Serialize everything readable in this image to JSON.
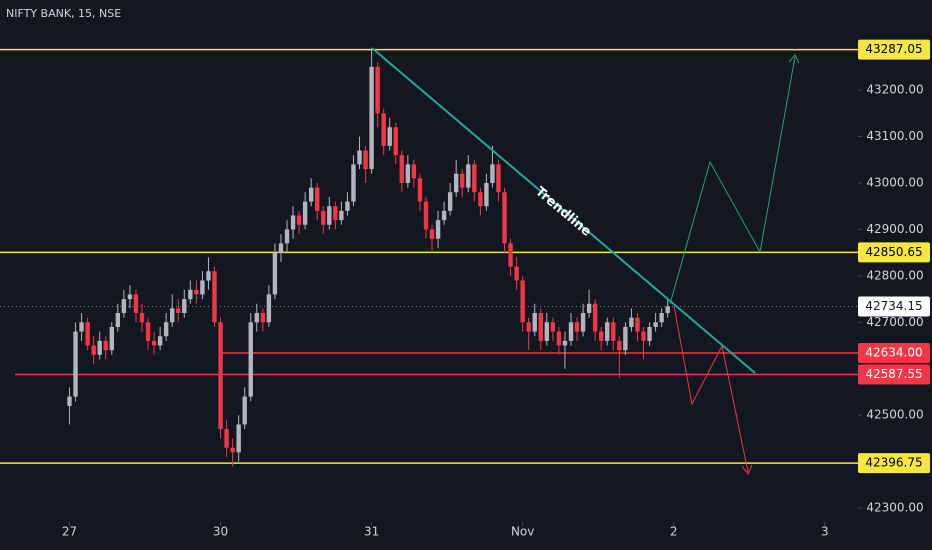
{
  "chart_data": {
    "type": "candlestick",
    "title": "NIFTY BANK, 15, NSE",
    "up_color": "#b2b5be",
    "down_color": "#f23645",
    "xlim": [
      -11.5,
      130.5
    ],
    "ylim": [
      42270,
      43394
    ],
    "xticks": [
      {
        "value": 0,
        "label": "27"
      },
      {
        "value": 25,
        "label": "30"
      },
      {
        "value": 50,
        "label": "31"
      },
      {
        "value": 75,
        "label": "Nov"
      },
      {
        "value": 100,
        "label": "2"
      },
      {
        "value": 125,
        "label": "3"
      }
    ],
    "yticks": [
      {
        "value": 43200,
        "label": "43200.00"
      },
      {
        "value": 43100,
        "label": "43100.00"
      },
      {
        "value": 43000,
        "label": "43000.00"
      },
      {
        "value": 42900,
        "label": "42900.00"
      },
      {
        "value": 42800,
        "label": "42800.00"
      },
      {
        "value": 42700,
        "label": "42700.00"
      },
      {
        "value": 42500,
        "label": "42500.00"
      },
      {
        "value": 42300,
        "label": "42300.00"
      }
    ],
    "levels": [
      {
        "price": 43287.05,
        "color": "#f5e642",
        "text_color": "#000000"
      },
      {
        "price": 42850.65,
        "color": "#f5e642",
        "text_color": "#000000"
      },
      {
        "price": 42396.75,
        "color": "#f5e642",
        "text_color": "#000000"
      },
      {
        "price": 42634,
        "label": "42634.00",
        "color": "#f23645",
        "text_color": "#ffffff"
      },
      {
        "price": 42587.55,
        "color": "#f23645",
        "text_color": "#ffffff"
      }
    ],
    "last_price": 42734.15,
    "annotations": [
      "Trendline"
    ],
    "candles": [
      [
        42520,
        42560,
        42480,
        42540
      ],
      [
        42540,
        42700,
        42530,
        42680
      ],
      [
        42680,
        42720,
        42660,
        42700
      ],
      [
        42700,
        42710,
        42640,
        42650
      ],
      [
        42650,
        42670,
        42610,
        42630
      ],
      [
        42630,
        42680,
        42620,
        42660
      ],
      [
        42660,
        42670,
        42620,
        42640
      ],
      [
        42640,
        42700,
        42630,
        42690
      ],
      [
        42690,
        42740,
        42680,
        42720
      ],
      [
        42720,
        42770,
        42710,
        42750
      ],
      [
        42750,
        42780,
        42730,
        42760
      ],
      [
        42760,
        42770,
        42700,
        42720
      ],
      [
        42720,
        42740,
        42680,
        42700
      ],
      [
        42700,
        42710,
        42640,
        42660
      ],
      [
        42660,
        42680,
        42630,
        42650
      ],
      [
        42650,
        42690,
        42640,
        42670
      ],
      [
        42670,
        42720,
        42660,
        42700
      ],
      [
        42700,
        42760,
        42690,
        42730
      ],
      [
        42730,
        42750,
        42700,
        42720
      ],
      [
        42720,
        42770,
        42710,
        42750
      ],
      [
        42750,
        42790,
        42740,
        42770
      ],
      [
        42770,
        42790,
        42740,
        42760
      ],
      [
        42760,
        42810,
        42750,
        42790
      ],
      [
        42790,
        42840,
        42770,
        42810
      ],
      [
        42810,
        42820,
        42690,
        42700
      ],
      [
        42700,
        42710,
        42450,
        42470
      ],
      [
        42470,
        42490,
        42410,
        42430
      ],
      [
        42430,
        42450,
        42390,
        42420
      ],
      [
        42420,
        42500,
        42400,
        42480
      ],
      [
        42480,
        42560,
        42470,
        42540
      ],
      [
        42540,
        42720,
        42530,
        42700
      ],
      [
        42700,
        42740,
        42680,
        42720
      ],
      [
        42720,
        42730,
        42680,
        42700
      ],
      [
        42700,
        42780,
        42690,
        42760
      ],
      [
        42760,
        42870,
        42750,
        42850
      ],
      [
        42850,
        42890,
        42830,
        42870
      ],
      [
        42870,
        42920,
        42850,
        42900
      ],
      [
        42900,
        42950,
        42880,
        42930
      ],
      [
        42930,
        42940,
        42890,
        42910
      ],
      [
        42910,
        42980,
        42900,
        42960
      ],
      [
        42960,
        43010,
        42950,
        42990
      ],
      [
        42990,
        43000,
        42920,
        42940
      ],
      [
        42940,
        42950,
        42890,
        42910
      ],
      [
        42910,
        42970,
        42900,
        42950
      ],
      [
        42950,
        42960,
        42900,
        42920
      ],
      [
        42920,
        42960,
        42910,
        42940
      ],
      [
        42940,
        42980,
        42930,
        42960
      ],
      [
        42960,
        43060,
        42950,
        43040
      ],
      [
        43040,
        43100,
        43030,
        43070
      ],
      [
        43070,
        43080,
        43000,
        43030
      ],
      [
        43030,
        43287,
        43020,
        43250
      ],
      [
        43250,
        43260,
        43120,
        43150
      ],
      [
        43150,
        43160,
        43060,
        43080
      ],
      [
        43080,
        43140,
        43070,
        43120
      ],
      [
        43120,
        43130,
        43040,
        43060
      ],
      [
        43060,
        43070,
        42980,
        43000
      ],
      [
        43000,
        43060,
        42990,
        43040
      ],
      [
        43040,
        43050,
        42990,
        43010
      ],
      [
        43010,
        43020,
        42940,
        42960
      ],
      [
        42960,
        42970,
        42880,
        42900
      ],
      [
        42900,
        42910,
        42850,
        42880
      ],
      [
        42880,
        42940,
        42860,
        42920
      ],
      [
        42920,
        42960,
        42910,
        42940
      ],
      [
        42940,
        43000,
        42930,
        42980
      ],
      [
        42980,
        43050,
        42970,
        43020
      ],
      [
        43020,
        43030,
        42970,
        42990
      ],
      [
        42990,
        43060,
        42980,
        43040
      ],
      [
        43040,
        43050,
        42960,
        42980
      ],
      [
        42980,
        42990,
        42930,
        42950
      ],
      [
        42950,
        43020,
        42940,
        43000
      ],
      [
        43000,
        43080,
        42990,
        43040
      ],
      [
        43040,
        43050,
        42960,
        42980
      ],
      [
        42980,
        42990,
        42850,
        42870
      ],
      [
        42870,
        42880,
        42800,
        42820
      ],
      [
        42820,
        42840,
        42770,
        42790
      ],
      [
        42790,
        42800,
        42680,
        42700
      ],
      [
        42700,
        42710,
        42640,
        42680
      ],
      [
        42680,
        42740,
        42670,
        42720
      ],
      [
        42720,
        42730,
        42640,
        42660
      ],
      [
        42660,
        42720,
        42650,
        42700
      ],
      [
        42700,
        42710,
        42660,
        42680
      ],
      [
        42680,
        42690,
        42630,
        42650
      ],
      [
        42650,
        42680,
        42600,
        42660
      ],
      [
        42660,
        42720,
        42650,
        42700
      ],
      [
        42700,
        42710,
        42660,
        42680
      ],
      [
        42680,
        42740,
        42670,
        42720
      ],
      [
        42720,
        42770,
        42710,
        42740
      ],
      [
        42740,
        42750,
        42660,
        42680
      ],
      [
        42680,
        42690,
        42640,
        42660
      ],
      [
        42660,
        42710,
        42650,
        42700
      ],
      [
        42700,
        42710,
        42640,
        42660
      ],
      [
        42660,
        42670,
        42580,
        42640
      ],
      [
        42640,
        42700,
        42630,
        42690
      ],
      [
        42690,
        42730,
        42680,
        42710
      ],
      [
        42710,
        42720,
        42660,
        42680
      ],
      [
        42680,
        42690,
        42620,
        42660
      ],
      [
        42660,
        42700,
        42650,
        42690
      ],
      [
        42690,
        42720,
        42680,
        42700
      ],
      [
        42700,
        42730,
        42690,
        42720
      ],
      [
        42720,
        42750,
        42710,
        42734.15
      ]
    ]
  }
}
